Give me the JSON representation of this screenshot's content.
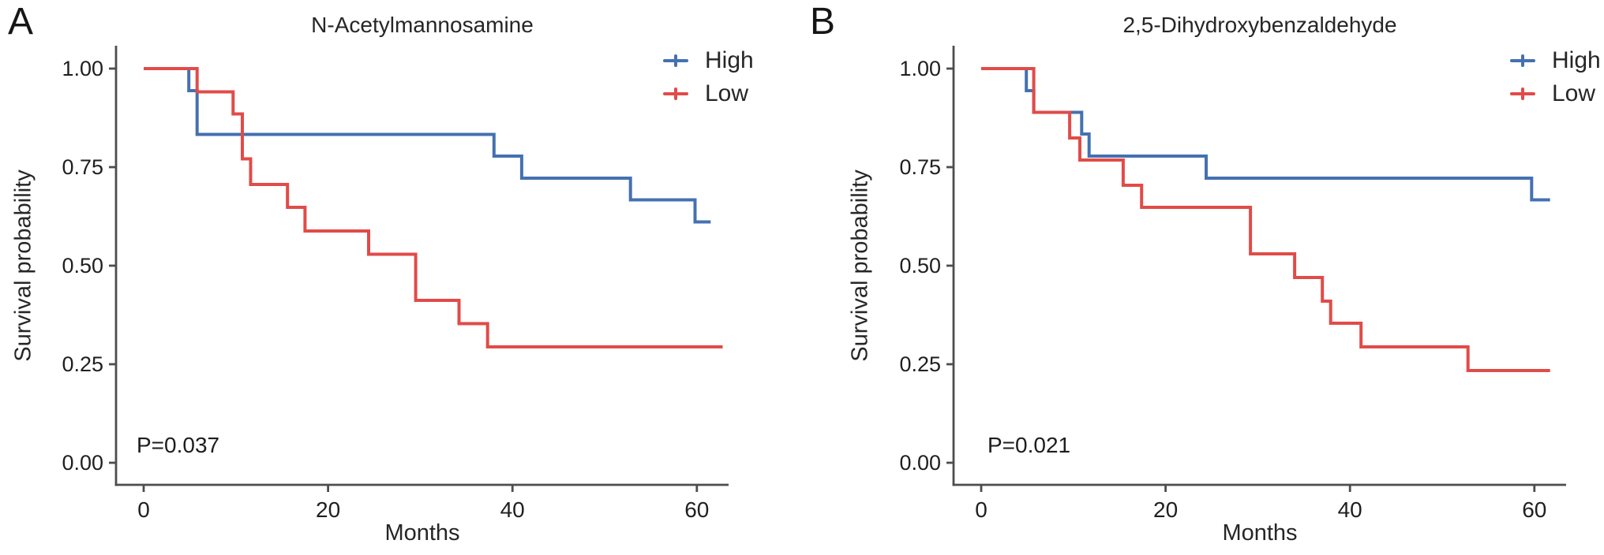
{
  "figure": {
    "panel_labels": [
      "A",
      "B"
    ]
  },
  "colors": {
    "high": "#4471B0",
    "low": "#E14B48",
    "axis_line": "#4D4D4D",
    "tick_text": "#1F1F1F"
  },
  "chart_data": [
    {
      "type": "line",
      "subtype": "kaplan-meier-step",
      "title": "N-Acetylmannosamine",
      "xlabel": "Months",
      "ylabel": "Survival probability",
      "annotation": "P=0.037",
      "xlim": [
        0,
        63
      ],
      "ylim": [
        0,
        1
      ],
      "x_ticks": [
        0,
        20,
        40,
        60
      ],
      "y_ticks": [
        1.0,
        0.75,
        0.5,
        0.25,
        0.0
      ],
      "y_tick_labels": [
        "1.00",
        "0.75",
        "0.50",
        "0.25",
        "0.00"
      ],
      "grid": false,
      "legend_position": "top-right",
      "series": [
        {
          "name": "High",
          "color": "#4471B0",
          "points": [
            [
              0,
              1.0
            ],
            [
              4.9,
              1.0
            ],
            [
              4.9,
              0.944
            ],
            [
              5.8,
              0.944
            ],
            [
              5.8,
              0.833
            ],
            [
              38,
              0.833
            ],
            [
              38,
              0.778
            ],
            [
              41,
              0.778
            ],
            [
              41,
              0.722
            ],
            [
              52.8,
              0.722
            ],
            [
              52.8,
              0.667
            ],
            [
              59.8,
              0.667
            ],
            [
              59.8,
              0.611
            ],
            [
              61.5,
              0.611
            ]
          ]
        },
        {
          "name": "Low",
          "color": "#E14B48",
          "points": [
            [
              0,
              1.0
            ],
            [
              5.8,
              1.0
            ],
            [
              5.8,
              0.941
            ],
            [
              9.7,
              0.941
            ],
            [
              9.7,
              0.885
            ],
            [
              10.7,
              0.885
            ],
            [
              10.7,
              0.771
            ],
            [
              11.6,
              0.771
            ],
            [
              11.6,
              0.706
            ],
            [
              15.6,
              0.706
            ],
            [
              15.6,
              0.648
            ],
            [
              17.5,
              0.648
            ],
            [
              17.5,
              0.588
            ],
            [
              24.4,
              0.588
            ],
            [
              24.4,
              0.529
            ],
            [
              29.5,
              0.529
            ],
            [
              29.5,
              0.412
            ],
            [
              34.2,
              0.412
            ],
            [
              34.2,
              0.353
            ],
            [
              37.3,
              0.353
            ],
            [
              37.3,
              0.294
            ],
            [
              62.8,
              0.294
            ]
          ]
        }
      ]
    },
    {
      "type": "line",
      "subtype": "kaplan-meier-step",
      "title": "2,5-Dihydroxybenzaldehyde",
      "xlabel": "Months",
      "ylabel": "Survival probability",
      "annotation": "P=0.021",
      "xlim": [
        0,
        63
      ],
      "ylim": [
        0,
        1
      ],
      "x_ticks": [
        0,
        20,
        40,
        60
      ],
      "y_ticks": [
        1.0,
        0.75,
        0.5,
        0.25,
        0.0
      ],
      "y_tick_labels": [
        "1.00",
        "0.75",
        "0.50",
        "0.25",
        "0.00"
      ],
      "grid": false,
      "legend_position": "top-right",
      "series": [
        {
          "name": "High",
          "color": "#4471B0",
          "points": [
            [
              0,
              1.0
            ],
            [
              4.9,
              1.0
            ],
            [
              4.9,
              0.944
            ],
            [
              5.7,
              0.944
            ],
            [
              5.7,
              0.889
            ],
            [
              10.9,
              0.889
            ],
            [
              10.9,
              0.834
            ],
            [
              11.7,
              0.834
            ],
            [
              11.7,
              0.778
            ],
            [
              24.4,
              0.778
            ],
            [
              24.4,
              0.722
            ],
            [
              59.7,
              0.722
            ],
            [
              59.7,
              0.667
            ],
            [
              61.7,
              0.667
            ]
          ]
        },
        {
          "name": "Low",
          "color": "#E14B48",
          "points": [
            [
              0,
              1.0
            ],
            [
              5.7,
              1.0
            ],
            [
              5.7,
              0.889
            ],
            [
              9.6,
              0.889
            ],
            [
              9.6,
              0.824
            ],
            [
              10.7,
              0.824
            ],
            [
              10.7,
              0.768
            ],
            [
              15.4,
              0.768
            ],
            [
              15.4,
              0.704
            ],
            [
              17.4,
              0.704
            ],
            [
              17.4,
              0.648
            ],
            [
              29.2,
              0.648
            ],
            [
              29.2,
              0.53
            ],
            [
              34,
              0.53
            ],
            [
              34,
              0.47
            ],
            [
              37,
              0.47
            ],
            [
              37,
              0.41
            ],
            [
              37.9,
              0.41
            ],
            [
              37.9,
              0.354
            ],
            [
              41.2,
              0.354
            ],
            [
              41.2,
              0.294
            ],
            [
              52.8,
              0.294
            ],
            [
              52.8,
              0.234
            ],
            [
              61.7,
              0.234
            ]
          ]
        }
      ]
    }
  ]
}
